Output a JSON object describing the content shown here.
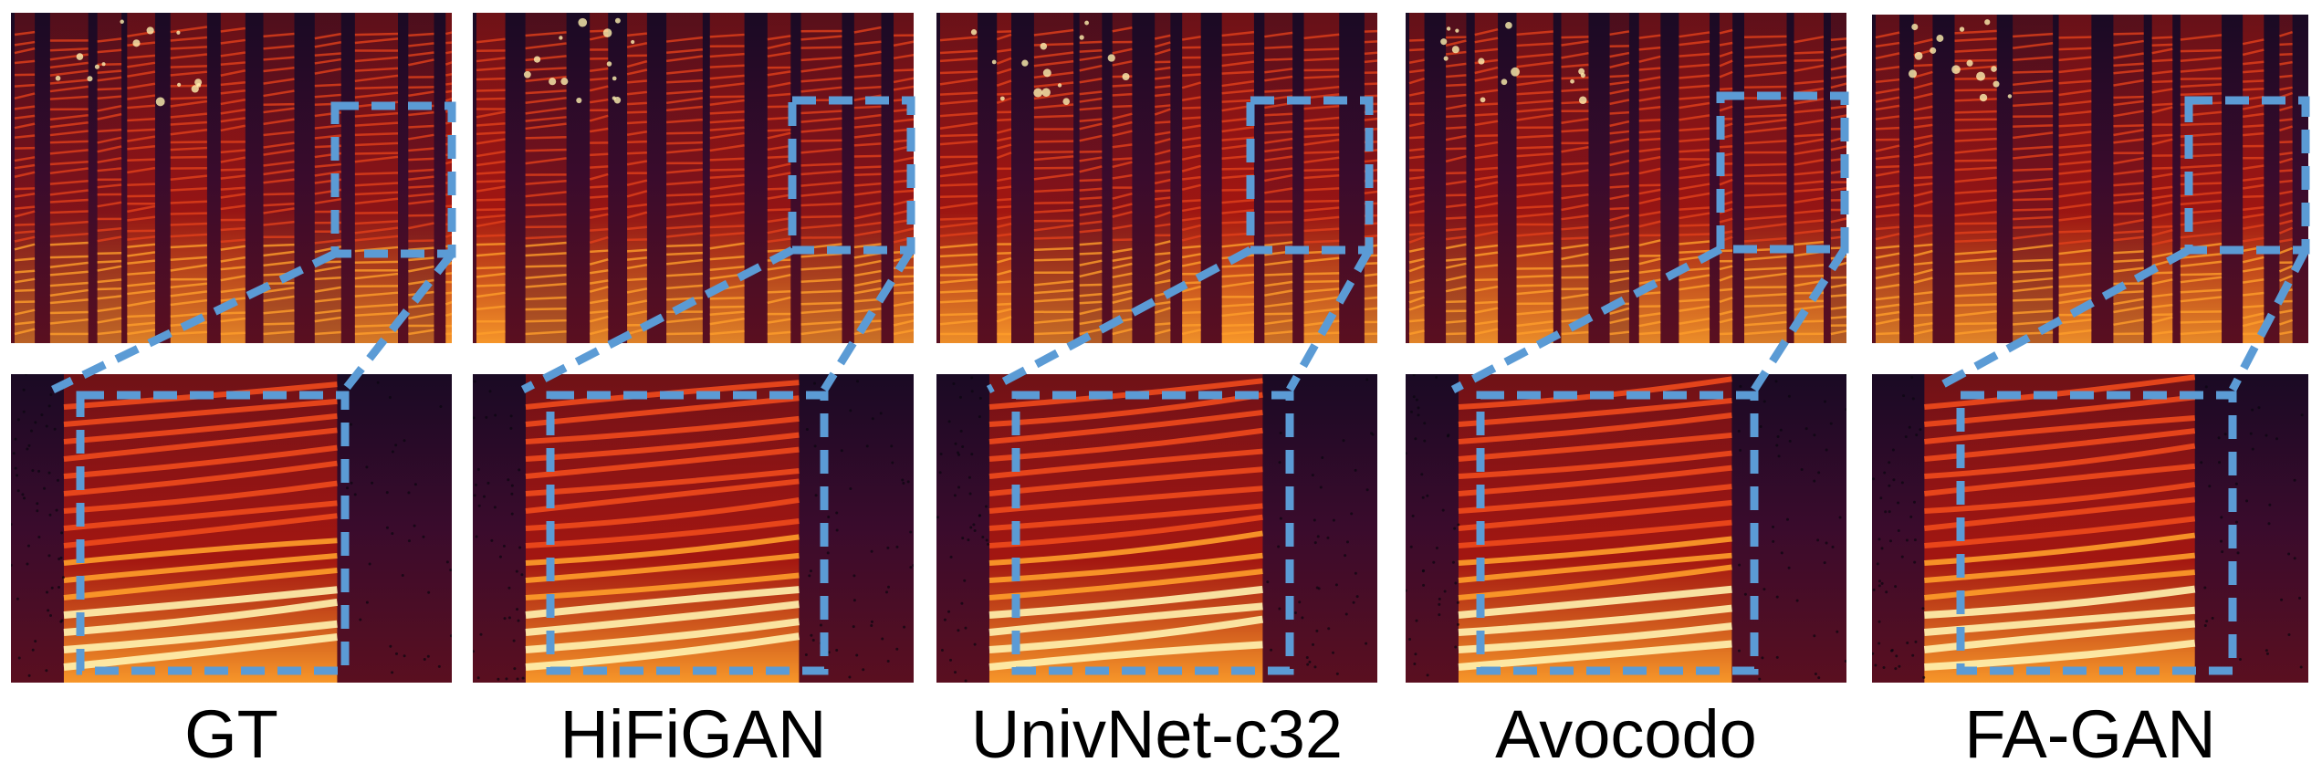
{
  "figure": {
    "labels": [
      "GT",
      "HiFiGAN",
      "UnivNet-c32",
      "Avocodo",
      "FA-GAN"
    ],
    "colors": {
      "box": "#5b9bd5",
      "spec_dark": "#1a0a24",
      "spec_mid": "#b4180c",
      "spec_bright": "#ff9e2a",
      "spec_hot": "#fff3b0"
    }
  }
}
